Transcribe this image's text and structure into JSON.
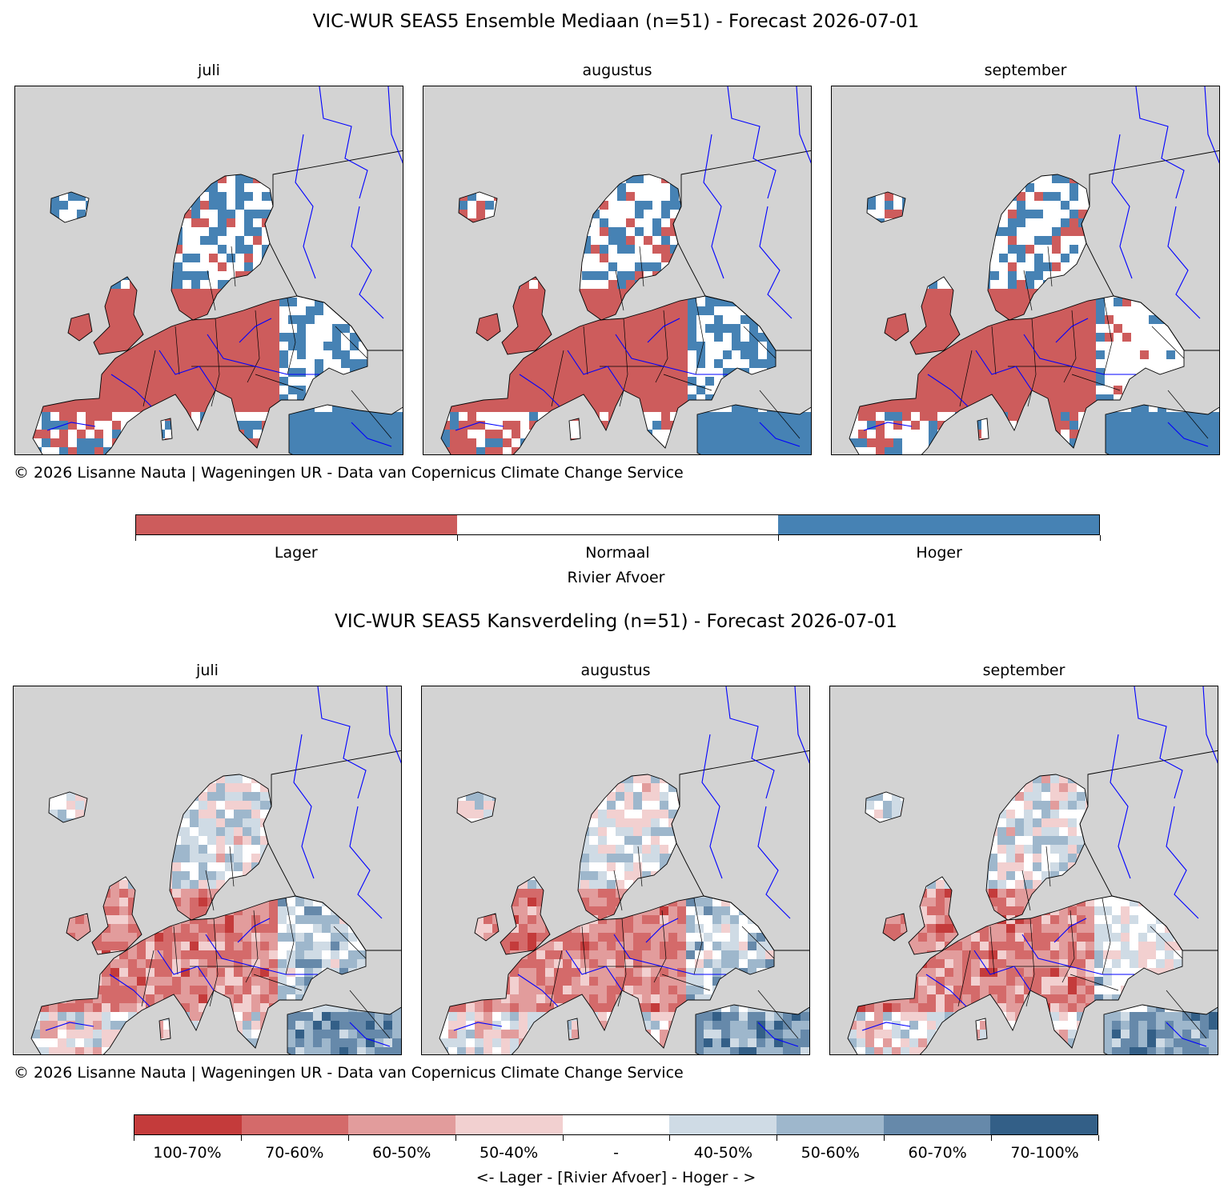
{
  "top": {
    "title": "VIC-WUR SEAS5 Ensemble Mediaan (n=51) - Forecast 2026-07-01",
    "panels": [
      {
        "month": "juli"
      },
      {
        "month": "augustus"
      },
      {
        "month": "september"
      }
    ],
    "credit": "© 2026 Lisanne Nauta | Wageningen UR - Data van Copernicus Climate Change Service",
    "legend": {
      "title": "Rivier Afvoer",
      "classes": [
        {
          "label": "Lager",
          "color": "#cd5c5c"
        },
        {
          "label": "Normaal",
          "color": "#ffffff"
        },
        {
          "label": "Hoger",
          "color": "#4682b4"
        }
      ]
    }
  },
  "bottom": {
    "title": "VIC-WUR SEAS5 Kansverdeling (n=51) - Forecast 2026-07-01",
    "panels": [
      {
        "month": "juli"
      },
      {
        "month": "augustus"
      },
      {
        "month": "september"
      }
    ],
    "credit": "© 2026 Lisanne Nauta | Wageningen UR - Data van Copernicus Climate Change Service",
    "legend": {
      "title": "<- Lager - [Rivier Afvoer] - Hoger - >",
      "classes": [
        {
          "label": "100-70%",
          "color": "#c43b3b"
        },
        {
          "label": "70-60%",
          "color": "#d46a6a"
        },
        {
          "label": "60-50%",
          "color": "#e29c9c"
        },
        {
          "label": "50-40%",
          "color": "#f2d0d0"
        },
        {
          "label": "-",
          "color": "#ffffff"
        },
        {
          "label": "40-50%",
          "color": "#cfdbe5"
        },
        {
          "label": "50-60%",
          "color": "#9eb7cc"
        },
        {
          "label": "60-70%",
          "color": "#6689aa"
        },
        {
          "label": "70-100%",
          "color": "#335f87"
        }
      ]
    }
  },
  "map_style": {
    "ocean_color": "#d3d3d3",
    "border_color": "#000000",
    "river_color": "#0000ff"
  }
}
